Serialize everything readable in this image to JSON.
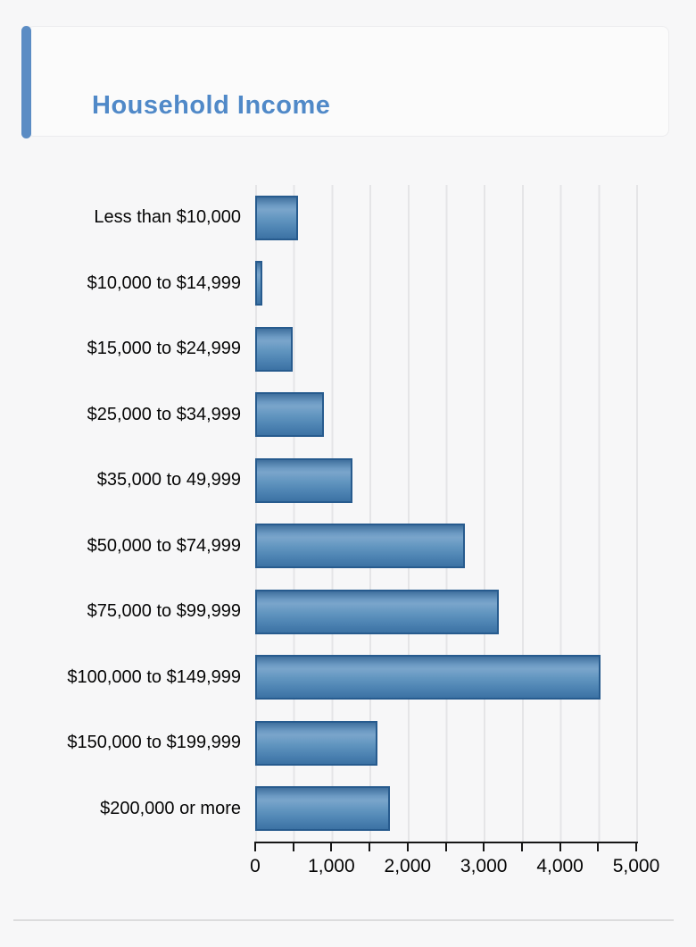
{
  "page": {
    "background": "#f7f7f8",
    "divider_color": "#dcdcdd"
  },
  "header": {
    "title": "Household Income",
    "title_color": "#5089c8",
    "accent_color": "#5b8cc4"
  },
  "chart_data": {
    "type": "bar",
    "orientation": "horizontal",
    "title": "Household Income",
    "categories": [
      "Less than $10,000",
      "$10,000 to $14,999",
      "$15,000 to $24,999",
      "$25,000 to $34,999",
      "$35,000 to 49,999",
      "$50,000 to $74,999",
      "$75,000 to $99,999",
      "$100,000 to $149,999",
      "$150,000 to $199,999",
      "$200,000 or more"
    ],
    "values": [
      560,
      90,
      490,
      905,
      1280,
      2750,
      3200,
      4530,
      1600,
      1770
    ],
    "xlabel": "",
    "ylabel": "",
    "xlim": [
      0,
      5000
    ],
    "x_tick_step": 500,
    "x_tick_labels": [
      {
        "value": 0,
        "label": "0"
      },
      {
        "value": 1000,
        "label": "1,000"
      },
      {
        "value": 2000,
        "label": "2,000"
      },
      {
        "value": 3000,
        "label": "3,000"
      },
      {
        "value": 4000,
        "label": "4,000"
      },
      {
        "value": 5000,
        "label": "5,000"
      }
    ],
    "grid": "vertical gridlines every 500",
    "legend": "none",
    "bar_fill_color": "#5689ba",
    "bar_border_color": "#275b8e",
    "gridline_color": "#e5e5e7"
  }
}
